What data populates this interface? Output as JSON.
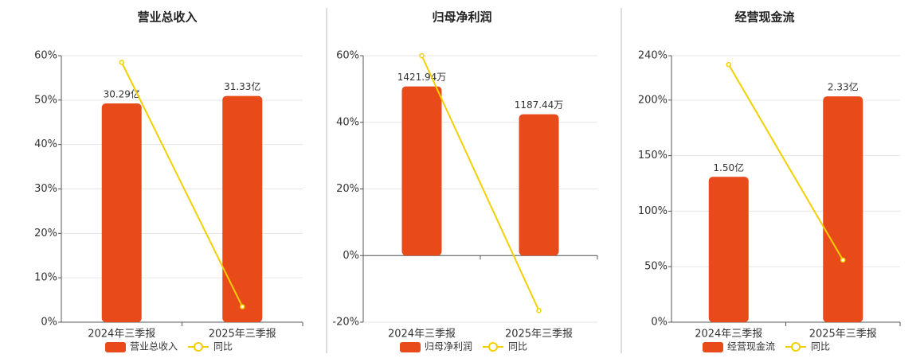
{
  "chart_data": [
    {
      "type": "bar",
      "title": "营业总收入",
      "categories": [
        "2024年三季报",
        "2025年三季报"
      ],
      "ylim": [
        0,
        60
      ],
      "yticks": [
        {
          "value": 0,
          "label": "0%"
        },
        {
          "value": 10,
          "label": "10%"
        },
        {
          "value": 20,
          "label": "20%"
        },
        {
          "value": 30,
          "label": "30%"
        },
        {
          "value": 40,
          "label": "40%"
        },
        {
          "value": 50,
          "label": "50%"
        },
        {
          "value": 60,
          "label": "60%"
        }
      ],
      "y2lim": [
        0,
        36.9
      ],
      "grid": true,
      "series": [
        {
          "name": "营业总收入",
          "color": "#e84a1a",
          "axis": "y2",
          "values": [
            30.29,
            31.33
          ],
          "value_labels": [
            "30.29亿",
            "31.33亿"
          ]
        },
        {
          "name": "同比",
          "type": "line",
          "color": "#f2d000",
          "values": [
            58.5,
            3.5
          ]
        }
      ]
    },
    {
      "type": "bar",
      "title": "归母净利润",
      "categories": [
        "2024年三季报",
        "2025年三季报"
      ],
      "ylim": [
        -20,
        60
      ],
      "yticks": [
        {
          "value": -20,
          "label": "-20%"
        },
        {
          "value": 0,
          "label": "0%"
        },
        {
          "value": 20,
          "label": "20%"
        },
        {
          "value": 40,
          "label": "40%"
        },
        {
          "value": 60,
          "label": "60%"
        }
      ],
      "y2lim": [
        -560,
        1680
      ],
      "grid": true,
      "series": [
        {
          "name": "归母净利润",
          "color": "#e84a1a",
          "axis": "y2",
          "values": [
            1421.94,
            1187.44
          ],
          "value_labels": [
            "1421.94万",
            "1187.44万"
          ]
        },
        {
          "name": "同比",
          "type": "line",
          "color": "#f2d000",
          "values": [
            60,
            -16.5
          ]
        }
      ]
    },
    {
      "type": "bar",
      "title": "经营现金流",
      "categories": [
        "2024年三季报",
        "2025年三季报"
      ],
      "ylim": [
        0,
        240
      ],
      "yticks": [
        {
          "value": 0,
          "label": "0%"
        },
        {
          "value": 50,
          "label": "50%"
        },
        {
          "value": 100,
          "label": "100%"
        },
        {
          "value": 150,
          "label": "150%"
        },
        {
          "value": 200,
          "label": "200%"
        },
        {
          "value": 240,
          "label": "240%"
        }
      ],
      "y2lim": [
        0,
        2.75
      ],
      "grid": true,
      "series": [
        {
          "name": "经营现金流",
          "color": "#e84a1a",
          "axis": "y2",
          "values": [
            1.5,
            2.33
          ],
          "value_labels": [
            "1.50亿",
            "2.33亿"
          ]
        },
        {
          "name": "同比",
          "type": "line",
          "color": "#f2d000",
          "values": [
            232,
            56
          ]
        }
      ]
    }
  ]
}
